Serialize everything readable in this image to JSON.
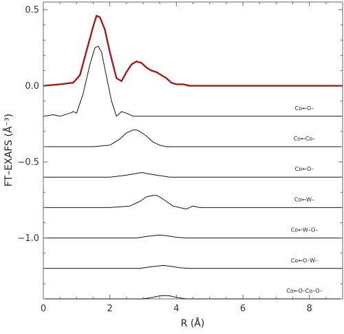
{
  "chart_data": {
    "type": "line",
    "xlabel": "R (Å)",
    "ylabel": "FT–EXAFS (Å⁻³)",
    "xlim": [
      0,
      9
    ],
    "ylim": [
      -1.4,
      0.55
    ],
    "x_ticks": [
      0,
      2,
      4,
      6,
      8
    ],
    "x_tick_labels": [
      "0",
      "2",
      "4",
      "6",
      "8"
    ],
    "y_ticks": [
      0.5,
      0.0,
      -0.5,
      -1.0
    ],
    "y_tick_labels": [
      "0.5",
      "0.0",
      "−0.5",
      "−1.0"
    ],
    "grid": false,
    "series": [
      {
        "color": "#b01515",
        "line_width": "thick",
        "x": [
          0,
          0.5,
          0.9,
          1.1,
          1.3,
          1.5,
          1.6,
          1.7,
          1.85,
          2.0,
          2.2,
          2.35,
          2.5,
          2.65,
          2.8,
          2.95,
          3.1,
          3.25,
          3.4,
          3.55,
          3.7,
          3.85,
          4.0,
          4.2,
          4.4,
          5,
          6,
          7,
          8,
          9
        ],
        "y": [
          0.0,
          0.01,
          0.02,
          0.07,
          0.23,
          0.39,
          0.46,
          0.45,
          0.37,
          0.22,
          0.05,
          0.03,
          0.09,
          0.14,
          0.16,
          0.15,
          0.12,
          0.1,
          0.09,
          0.07,
          0.05,
          0.02,
          0.01,
          0.01,
          0.0,
          0.0,
          0.0,
          0.0,
          0.0,
          0.0
        ]
      },
      {
        "label": "Co←O–",
        "color": "#111111",
        "x": [
          0,
          0.3,
          0.5,
          0.8,
          0.9,
          1.0,
          1.2,
          1.4,
          1.55,
          1.65,
          1.75,
          1.9,
          2.05,
          2.2,
          2.35,
          2.5,
          2.7,
          3.0,
          4,
          5,
          6,
          7,
          8,
          9
        ],
        "y": [
          -0.2,
          -0.19,
          -0.2,
          -0.18,
          -0.17,
          -0.18,
          -0.05,
          0.14,
          0.25,
          0.26,
          0.22,
          0.06,
          -0.1,
          -0.2,
          -0.17,
          -0.18,
          -0.2,
          -0.2,
          -0.2,
          -0.2,
          -0.2,
          -0.2,
          -0.2,
          -0.2
        ]
      },
      {
        "label": "Co←Co–",
        "color": "#111111",
        "x": [
          0,
          1,
          1.5,
          2.0,
          2.3,
          2.5,
          2.7,
          2.8,
          2.9,
          3.1,
          3.3,
          3.5,
          3.7,
          4.0,
          5,
          6,
          7,
          8,
          9
        ],
        "y": [
          -0.4,
          -0.4,
          -0.4,
          -0.39,
          -0.35,
          -0.31,
          -0.29,
          -0.29,
          -0.3,
          -0.33,
          -0.37,
          -0.39,
          -0.4,
          -0.4,
          -0.4,
          -0.4,
          -0.4,
          -0.4,
          -0.4
        ]
      },
      {
        "label": "Co←O–",
        "color": "#111111",
        "x": [
          0,
          1,
          2.0,
          2.4,
          2.7,
          2.95,
          3.2,
          3.5,
          3.8,
          4.2,
          5,
          6,
          7,
          8,
          9
        ],
        "y": [
          -0.6,
          -0.6,
          -0.6,
          -0.59,
          -0.58,
          -0.57,
          -0.58,
          -0.59,
          -0.6,
          -0.6,
          -0.6,
          -0.6,
          -0.6,
          -0.6,
          -0.6
        ]
      },
      {
        "label": "Co←W–",
        "color": "#111111",
        "x": [
          0,
          1,
          2,
          2.6,
          2.9,
          3.1,
          3.3,
          3.4,
          3.5,
          3.7,
          3.9,
          4.1,
          4.3,
          4.5,
          4.7,
          5,
          6,
          7,
          8,
          9
        ],
        "y": [
          -0.8,
          -0.8,
          -0.8,
          -0.79,
          -0.76,
          -0.73,
          -0.72,
          -0.72,
          -0.73,
          -0.76,
          -0.79,
          -0.8,
          -0.81,
          -0.79,
          -0.8,
          -0.8,
          -0.8,
          -0.8,
          -0.8,
          -0.8
        ]
      },
      {
        "label": "Co←W–O–",
        "color": "#111111",
        "x": [
          0,
          1,
          2,
          2.8,
          3.1,
          3.3,
          3.5,
          3.7,
          4.0,
          4.3,
          4.6,
          5,
          6,
          7,
          8,
          9
        ],
        "y": [
          -1.0,
          -1.0,
          -1.0,
          -1.0,
          -0.99,
          -0.985,
          -0.98,
          -0.985,
          -0.995,
          -1.0,
          -1.0,
          -1.0,
          -1.0,
          -1.0,
          -1.0,
          -1.0
        ]
      },
      {
        "label": "Co←O–W–",
        "color": "#111111",
        "x": [
          0,
          1,
          2,
          2.9,
          3.2,
          3.4,
          3.6,
          3.8,
          4.1,
          4.4,
          4.7,
          5,
          6,
          7,
          8,
          9
        ],
        "y": [
          -1.2,
          -1.2,
          -1.2,
          -1.2,
          -1.19,
          -1.185,
          -1.18,
          -1.185,
          -1.195,
          -1.2,
          -1.2,
          -1.2,
          -1.2,
          -1.2,
          -1.2,
          -1.2
        ]
      },
      {
        "label": "Co←O–Co–O–",
        "color": "#111111",
        "x": [
          0,
          1,
          2,
          3.0,
          3.3,
          3.5,
          3.65,
          3.8,
          4.0,
          4.3,
          5,
          6,
          7,
          8,
          9
        ],
        "y": [
          -1.4,
          -1.4,
          -1.4,
          -1.4,
          -1.39,
          -1.38,
          -1.378,
          -1.38,
          -1.39,
          -1.4,
          -1.4,
          -1.4,
          -1.4,
          -1.4,
          -1.4
        ]
      }
    ]
  }
}
